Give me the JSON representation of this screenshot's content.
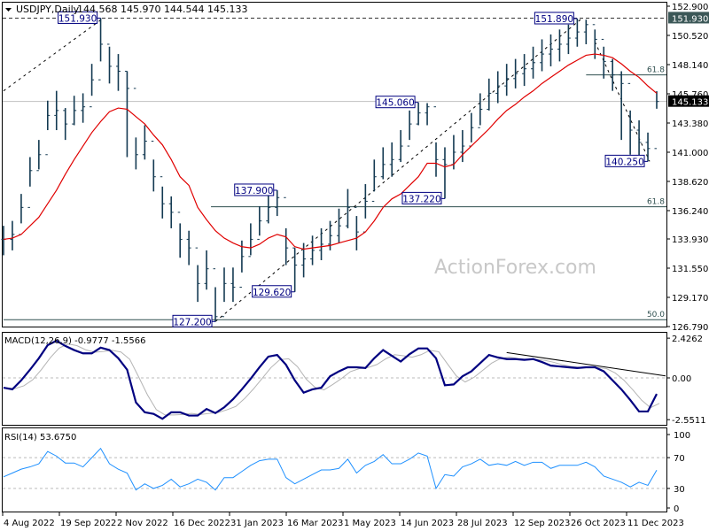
{
  "header": {
    "symbol_label": "USDJPY,Daily",
    "ohlc_label": "144.568 145.970 144.544 145.133"
  },
  "watermark": "ActionForex.com",
  "colors": {
    "bars": "#143a52",
    "ma": "#e00000",
    "macd": "#000080",
    "signal": "#b4b4b4",
    "rsi": "#1e90ff",
    "label_box": "#000080",
    "fib": "#2f4f4f"
  },
  "chart_data": [
    {
      "type": "ohlc",
      "panel": "price",
      "ylim": [
        126.79,
        152.9
      ],
      "y_ticks": [
        "152.900",
        "150.520",
        "148.140",
        "145.760",
        "143.380",
        "141.000",
        "138.620",
        "136.240",
        "133.930",
        "131.550",
        "129.170",
        "126.790"
      ],
      "x_ticks": [
        "4 Aug 2022",
        "19 Sep 2022",
        "2 Nov 2022",
        "16 Dec 2022",
        "31 Jan 2023",
        "16 Mar 2023",
        "1 May 2023",
        "14 Jun 2023",
        "28 Jul 2023",
        "12 Sep 2023",
        "26 Oct 2023",
        "11 Dec 2023"
      ],
      "current_price": "145.133",
      "marked_high": "151.930",
      "close": [
        133.9,
        134.3,
        136.5,
        139.5,
        140.8,
        144.0,
        144.4,
        143.3,
        144.4,
        144.7,
        146.9,
        149.8,
        148.0,
        147.6,
        146.2,
        140.8,
        141.9,
        139.0,
        136.8,
        136.1,
        133.9,
        133.2,
        130.3,
        131.5,
        127.6,
        130.3,
        130.0,
        132.5,
        133.9,
        135.4,
        136.5,
        137.3,
        133.2,
        131.8,
        132.3,
        133.0,
        133.5,
        134.2,
        135.0,
        136.5,
        134.5,
        137.0,
        139.0,
        140.0,
        140.4,
        141.5,
        143.3,
        144.2,
        144.7,
        140.4,
        140.0,
        141.0,
        141.5,
        143.0,
        144.5,
        145.8,
        146.4,
        147.0,
        147.4,
        147.8,
        148.3,
        149.0,
        149.4,
        149.8,
        150.3,
        150.8,
        151.4,
        150.2,
        148.4,
        147.3,
        146.6,
        142.8,
        141.8,
        141.3,
        145.133
      ],
      "high": [
        135.0,
        135.4,
        137.6,
        140.6,
        142.0,
        145.2,
        146.0,
        144.6,
        145.6,
        145.8,
        148.2,
        151.93,
        149.6,
        149.0,
        147.6,
        142.2,
        143.2,
        140.4,
        138.2,
        137.4,
        135.2,
        134.6,
        131.8,
        133.0,
        130.0,
        131.6,
        131.6,
        133.8,
        135.2,
        136.6,
        137.6,
        137.9,
        134.8,
        133.2,
        133.6,
        134.2,
        134.8,
        135.4,
        136.4,
        138.0,
        135.8,
        138.4,
        140.4,
        141.4,
        141.8,
        142.8,
        144.4,
        145.06,
        145.0,
        141.8,
        141.4,
        142.4,
        142.8,
        144.2,
        145.8,
        147.0,
        147.6,
        148.2,
        148.6,
        149.0,
        149.6,
        150.2,
        150.6,
        151.0,
        151.4,
        151.89,
        151.8,
        151.0,
        149.6,
        148.6,
        147.6,
        144.4,
        143.6,
        142.6,
        145.97
      ],
      "low": [
        132.6,
        133.0,
        135.2,
        138.2,
        139.6,
        142.8,
        142.8,
        142.0,
        143.2,
        143.4,
        145.6,
        148.4,
        146.6,
        146.0,
        140.6,
        139.6,
        140.4,
        137.8,
        135.6,
        134.8,
        132.4,
        131.8,
        128.8,
        129.8,
        127.2,
        128.8,
        128.8,
        131.2,
        132.6,
        134.2,
        135.2,
        135.8,
        131.8,
        129.62,
        130.8,
        131.8,
        132.2,
        133.0,
        133.6,
        134.8,
        133.0,
        135.6,
        137.8,
        138.8,
        139.0,
        140.2,
        142.0,
        143.2,
        143.2,
        139.0,
        137.22,
        139.6,
        140.2,
        141.8,
        143.2,
        144.4,
        145.0,
        145.6,
        146.2,
        146.4,
        147.0,
        147.6,
        148.0,
        148.4,
        149.0,
        149.6,
        149.8,
        148.6,
        147.0,
        146.0,
        142.0,
        140.8,
        140.6,
        140.25,
        144.544
      ],
      "ma": [
        133.9,
        134.0,
        134.3,
        135.0,
        135.7,
        136.8,
        137.9,
        139.2,
        140.4,
        141.5,
        142.6,
        143.5,
        144.3,
        144.6,
        144.5,
        143.9,
        143.3,
        142.4,
        141.6,
        140.4,
        139.0,
        138.3,
        136.5,
        135.5,
        134.6,
        134.0,
        133.6,
        133.3,
        133.2,
        133.5,
        134.0,
        134.3,
        134.1,
        133.3,
        133.1,
        133.2,
        133.3,
        133.4,
        133.6,
        133.8,
        134.0,
        134.5,
        135.4,
        136.5,
        137.2,
        137.6,
        138.3,
        139.0,
        140.1,
        140.1,
        139.8,
        140.0,
        140.8,
        141.5,
        142.2,
        142.9,
        143.7,
        144.4,
        144.9,
        145.5,
        146.0,
        146.6,
        147.1,
        147.6,
        148.1,
        148.5,
        148.9,
        149.0,
        148.9,
        148.7,
        148.2,
        147.6,
        147.1,
        146.4,
        145.8
      ],
      "price_labels": [
        {
          "text": "151.930",
          "price": 151.93,
          "at": 11
        },
        {
          "text": "127.200",
          "price": 127.2,
          "at": 24
        },
        {
          "text": "137.900",
          "price": 137.9,
          "at": 31
        },
        {
          "text": "129.620",
          "price": 129.62,
          "at": 33
        },
        {
          "text": "145.060",
          "price": 145.06,
          "at": 47
        },
        {
          "text": "137.220",
          "price": 137.22,
          "at": 50
        },
        {
          "text": "151.890",
          "price": 151.89,
          "at": 65
        },
        {
          "text": "140.250",
          "price": 140.25,
          "at": 73
        }
      ],
      "fib_levels": [
        {
          "label": "61.8",
          "price": 147.3,
          "from": 66
        },
        {
          "label": "61.8",
          "price": 136.55,
          "from": 23.5
        },
        {
          "label": "50.0",
          "price": 127.35,
          "from": 0
        }
      ],
      "trendlines": [
        {
          "from": [
            0,
            146.0
          ],
          "to": [
            11.3,
            151.93
          ]
        },
        {
          "from": [
            24,
            127.2
          ],
          "to": [
            65.5,
            151.89
          ]
        },
        {
          "from": [
            67,
            150.0
          ],
          "to": [
            73.2,
            140.25
          ]
        }
      ]
    },
    {
      "type": "line",
      "panel": "macd",
      "title": "MACD(12,26,9) -0.9777 -1.5566",
      "ylim": [
        -2.5511,
        2.4262
      ],
      "y_ticks": [
        "2.4262",
        "0.00",
        "-2.5511"
      ],
      "macd": [
        -0.6,
        -0.7,
        -0.15,
        0.5,
        1.2,
        2.0,
        2.27,
        1.95,
        1.7,
        1.5,
        1.5,
        1.85,
        1.7,
        1.2,
        0.5,
        -1.5,
        -2.1,
        -2.2,
        -2.5,
        -2.1,
        -2.1,
        -2.3,
        -2.3,
        -1.9,
        -2.15,
        -1.8,
        -1.3,
        -0.7,
        -0.05,
        0.65,
        1.3,
        1.4,
        0.8,
        -0.15,
        -0.9,
        -0.7,
        -0.6,
        0.1,
        0.4,
        0.65,
        0.65,
        0.6,
        1.2,
        1.7,
        1.35,
        1.0,
        1.45,
        1.8,
        1.8,
        1.2,
        -0.45,
        -0.4,
        0.1,
        0.4,
        0.9,
        1.4,
        1.25,
        1.15,
        1.15,
        1.1,
        1.15,
        0.97,
        0.75,
        0.7,
        0.65,
        0.6,
        0.65,
        0.65,
        0.4,
        -0.15,
        -0.7,
        -1.35,
        -2.05,
        -2.05,
        -0.9777
      ],
      "signal_last": -1.5566,
      "trendline": {
        "from": [
          57,
          1.55
        ],
        "to": [
          75,
          0.12
        ]
      }
    },
    {
      "type": "line",
      "panel": "rsi",
      "title": "RSI(14) 53.6750",
      "ylim": [
        0,
        100
      ],
      "y_ticks": [
        "100",
        "70",
        "30",
        "0"
      ],
      "levels": [
        70,
        30
      ],
      "values": [
        45,
        50,
        55,
        58,
        62,
        78,
        72,
        63,
        63,
        58,
        70,
        82,
        62,
        55,
        50,
        28,
        36,
        30,
        34,
        42,
        32,
        36,
        42,
        38,
        28,
        44,
        44,
        52,
        60,
        66,
        68,
        68,
        44,
        36,
        42,
        48,
        54,
        54,
        56,
        68,
        50,
        60,
        65,
        74,
        62,
        62,
        68,
        76,
        72,
        30,
        48,
        46,
        58,
        62,
        68,
        60,
        62,
        60,
        65,
        60,
        64,
        64,
        56,
        60,
        60,
        60,
        64,
        58,
        46,
        42,
        38,
        32,
        38,
        34,
        53.675
      ]
    }
  ]
}
